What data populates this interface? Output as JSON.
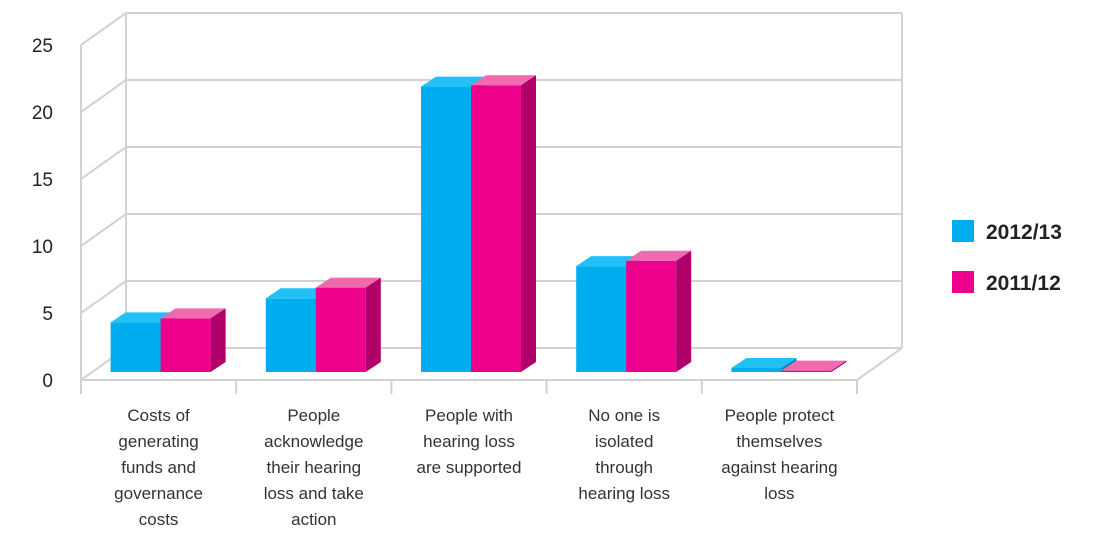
{
  "chart_data": {
    "type": "bar",
    "categories": [
      [
        "Costs of",
        "generating",
        "funds and",
        "governance",
        "costs"
      ],
      [
        "People",
        "acknowledge",
        "their hearing",
        "loss and take",
        "action"
      ],
      [
        "People with",
        "hearing loss",
        "are supported"
      ],
      [
        "No one is",
        "isolated",
        "through",
        "hearing loss"
      ],
      [
        "People protect",
        "themselves",
        "against hearing",
        "loss"
      ]
    ],
    "series": [
      {
        "name": "2012/13",
        "values": [
          3.7,
          5.5,
          21.3,
          7.9,
          0.3
        ]
      },
      {
        "name": "2011/12",
        "values": [
          4.0,
          6.3,
          21.4,
          8.3,
          0.1
        ]
      }
    ],
    "colors": {
      "2012/13": {
        "front": "#00aeef",
        "top": "#22c1f5",
        "side": "#0088c0"
      },
      "2011/12": {
        "front": "#ec008c",
        "top": "#f06aae",
        "side": "#b0006a"
      }
    },
    "ylim": [
      0,
      25
    ],
    "yticks": [
      "0",
      "5",
      "10",
      "15",
      "20",
      "25"
    ],
    "gridlines": true,
    "legend_position": "right",
    "title": "",
    "xlabel": "",
    "ylabel": ""
  }
}
